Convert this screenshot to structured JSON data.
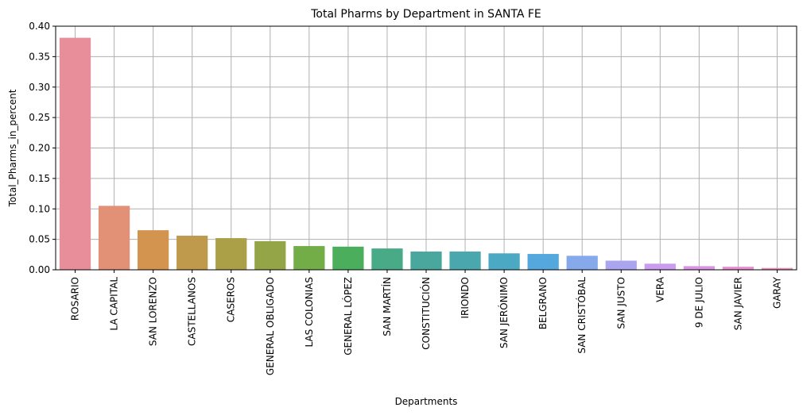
{
  "chart_data": {
    "type": "bar",
    "title": "Total Pharms by Department in SANTA FE",
    "xlabel": "Departments",
    "ylabel": "Total_Pharms_in_percent",
    "ylim": [
      0,
      0.4
    ],
    "yticks": [
      "0.00",
      "0.05",
      "0.10",
      "0.15",
      "0.20",
      "0.25",
      "0.30",
      "0.35",
      "0.40"
    ],
    "grid": true,
    "categories": [
      "ROSARIO",
      "LA CAPITAL",
      "SAN LORENZO",
      "CASTELLANOS",
      "CASEROS",
      "GENERAL OBLIGADO",
      "LAS COLONIAS",
      "GENERAL LÓPEZ",
      "SAN MARTÍN",
      "CONSTITUCIÓN",
      "IRIONDO",
      "SAN JERÓNIMO",
      "BELGRANO",
      "SAN CRISTÓBAL",
      "SAN JUSTO",
      "VERA",
      "9 DE JULIO",
      "SAN JAVIER",
      "GARAY"
    ],
    "values": [
      0.381,
      0.105,
      0.065,
      0.056,
      0.052,
      0.047,
      0.039,
      0.038,
      0.035,
      0.03,
      0.03,
      0.027,
      0.026,
      0.023,
      0.015,
      0.01,
      0.006,
      0.005,
      0.003
    ],
    "colors": [
      "#e88e9a",
      "#e39176",
      "#d3944f",
      "#bf9a4c",
      "#ab9f48",
      "#93a547",
      "#72ad48",
      "#4aae5c",
      "#49aa88",
      "#4aa79d",
      "#4ba7ae",
      "#4ca9c4",
      "#54a8dd",
      "#85a9ea",
      "#aba4ef",
      "#c99cef",
      "#dc93e6",
      "#e58fd1",
      "#e88fb7"
    ]
  }
}
